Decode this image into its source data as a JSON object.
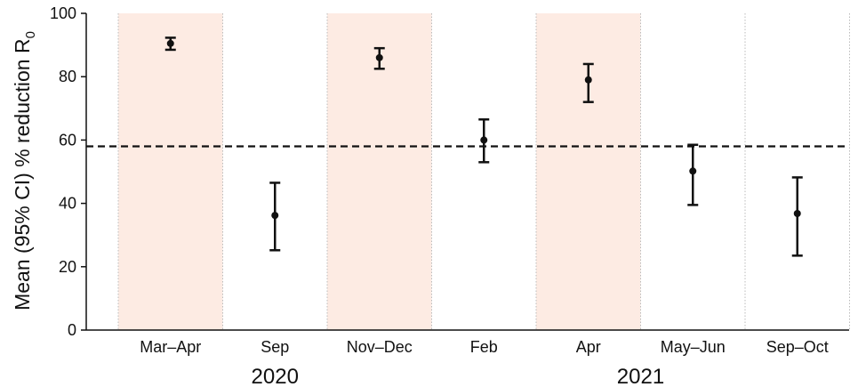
{
  "chart_data": {
    "type": "scatter",
    "title": "",
    "xlabel": "",
    "ylabel": "Mean (95% CI) % reduction R",
    "ylabel_subscript": "0",
    "ylim": [
      0,
      100
    ],
    "yticks": [
      0,
      20,
      40,
      60,
      80,
      100
    ],
    "categories": [
      "Mar–Apr",
      "Sep",
      "Nov–Dec",
      "Feb",
      "Apr",
      "May–Jun",
      "Sep–Oct"
    ],
    "year_groups": [
      {
        "label": "2020",
        "categories": [
          "Mar–Apr",
          "Sep",
          "Nov–Dec"
        ]
      },
      {
        "label": "2021",
        "categories": [
          "Feb",
          "Apr",
          "May–Jun",
          "Sep–Oct"
        ]
      }
    ],
    "series": [
      {
        "values": [
          90.5,
          36.2,
          86.0,
          60.0,
          79.0,
          50.2,
          36.8
        ],
        "ci_lower": [
          88.5,
          25.2,
          82.5,
          53.0,
          72.0,
          39.5,
          23.5
        ],
        "ci_upper": [
          92.3,
          46.5,
          89.0,
          66.5,
          84.0,
          58.5,
          48.2
        ]
      }
    ],
    "reference_line": 58,
    "shaded_categories": [
      "Mar–Apr",
      "Nov–Dec",
      "Apr"
    ],
    "colors": {
      "shade": "#fdebe3",
      "marker": "#111111",
      "reference_line": "#111111",
      "separator": "#bbbbbb"
    },
    "grid": false
  }
}
